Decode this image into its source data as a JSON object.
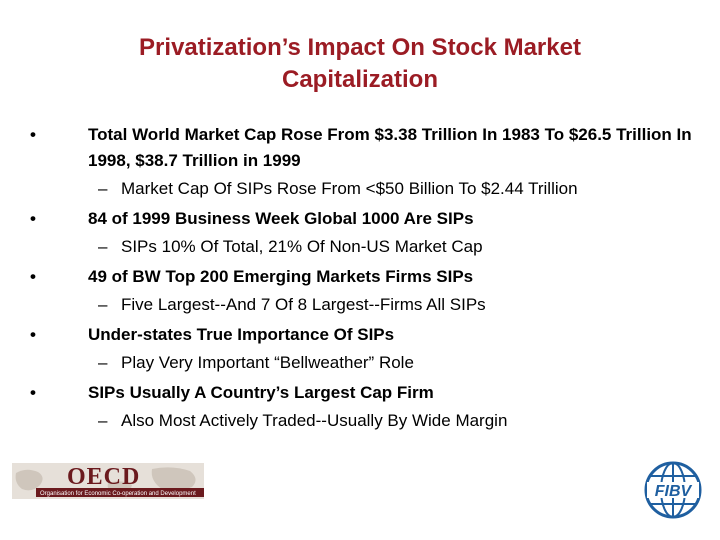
{
  "slide": {
    "title_line1": "Privatization’s Impact On Stock Market",
    "title_line2": "Capitalization",
    "bullet_symbol": "•",
    "sub_symbol": "–",
    "bullets": [
      {
        "text": "Total World Market Cap Rose From $3.38 Trillion In 1983 To $26.5 Trillion In 1998, $38.7 Trillion in 1999",
        "sub": "Market Cap Of SIPs Rose From <$50 Billion To $2.44 Trillion"
      },
      {
        "text": "84 of 1999 Business Week Global 1000 Are SIPs",
        "sub": "SIPs 10% Of Total, 21% Of Non-US Market Cap"
      },
      {
        "text": "49 of BW Top 200 Emerging Markets Firms SIPs",
        "sub": "Five Largest--And 7 Of 8 Largest--Firms All SIPs"
      },
      {
        "text": "Under-states True Importance Of SIPs",
        "sub": "Play Very Important “Bellweather” Role"
      },
      {
        "text": "SIPs Usually A Country’s Largest Cap Firm",
        "sub": "Also Most Actively Traded--Usually By Wide Margin"
      }
    ]
  },
  "logos": {
    "oecd": {
      "wordmark": "OECD",
      "tagline": "Organisation for Economic Co-operation and Development",
      "color": "#6b1a1e"
    },
    "fibv": {
      "wordmark": "FIBV",
      "color": "#1f5fa0"
    }
  }
}
